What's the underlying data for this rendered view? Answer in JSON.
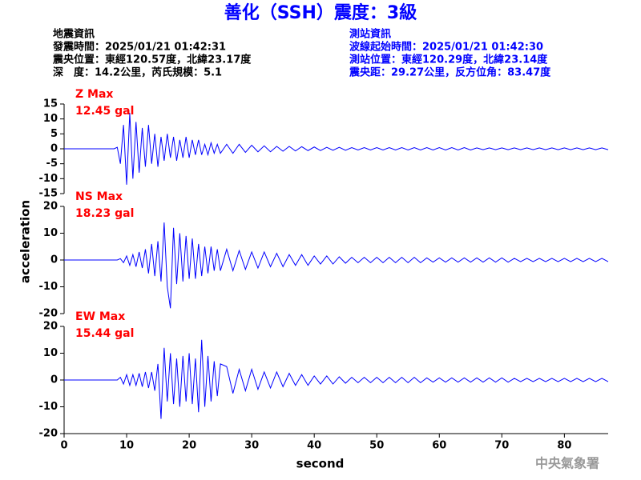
{
  "header": {
    "title": "善化（SSH）震度：3級",
    "left": [
      "地震資訊",
      "發震時間：2025/01/21 01:42:31",
      "震央位置：東經120.57度，北緯23.17度",
      "深　度：14.2公里，芮氏規模：5.1"
    ],
    "right": [
      "測站資訊",
      "波線起始時間：2025/01/21 01:42:30",
      "測站位置：東經120.29度，北緯23.14度",
      "震央距：29.27公里，反方位角：83.47度"
    ]
  },
  "ylabel": "acceleration",
  "footer": "中央氣象署",
  "chart_data": [
    {
      "type": "line",
      "annotation": [
        "Z Max",
        "12.45 gal"
      ],
      "color": "#0000ff",
      "xlim": [
        0,
        87
      ],
      "ylim": [
        -15,
        15
      ],
      "yticks": [
        -15,
        -10,
        -5,
        0,
        5,
        10,
        15
      ],
      "x": [
        0,
        2,
        4,
        6,
        8,
        8.5,
        9,
        9.5,
        10,
        10.5,
        11,
        11.5,
        12,
        12.5,
        13,
        13.5,
        14,
        14.5,
        15,
        15.5,
        16,
        16.5,
        17,
        17.5,
        18,
        18.5,
        19,
        19.5,
        20,
        20.5,
        21,
        21.5,
        22,
        22.5,
        23,
        23.5,
        24,
        24.5,
        25,
        26,
        27,
        28,
        29,
        30,
        31,
        32,
        33,
        34,
        35,
        36,
        37,
        38,
        39,
        40,
        41,
        42,
        43,
        44,
        45,
        46,
        47,
        48,
        49,
        50,
        51,
        52,
        53,
        54,
        55,
        56,
        57,
        58,
        59,
        60,
        61,
        62,
        63,
        64,
        65,
        66,
        67,
        68,
        69,
        70,
        71,
        72,
        73,
        74,
        75,
        76,
        77,
        78,
        79,
        80,
        81,
        82,
        83,
        84,
        85,
        86,
        87
      ],
      "values": [
        0,
        0,
        0,
        0,
        0,
        0.5,
        -5,
        8,
        -12,
        12,
        -10,
        9,
        -8,
        7,
        -6,
        8,
        -5,
        5,
        -6,
        4,
        -4,
        5,
        -3,
        4,
        -4,
        3,
        -3,
        4,
        -3,
        3,
        -2,
        3,
        -2,
        1.5,
        -2,
        2,
        -1.5,
        1.5,
        -1.5,
        1.5,
        -1.5,
        1.5,
        -1.2,
        1.2,
        -1,
        1,
        -1,
        0.8,
        -0.8,
        0.8,
        -0.7,
        0.7,
        -0.6,
        0.6,
        -0.6,
        0.5,
        -0.5,
        0.5,
        -0.5,
        0.4,
        -0.4,
        0.4,
        -0.4,
        0.4,
        -0.4,
        0.4,
        -0.4,
        0.4,
        -0.4,
        0.4,
        -0.4,
        0.4,
        -0.4,
        0.4,
        -0.4,
        0.4,
        -0.4,
        0.4,
        -0.4,
        0.3,
        -0.3,
        0.3,
        -0.3,
        0.3,
        -0.3,
        0.3,
        -0.3,
        0.3,
        -0.3,
        0.3,
        -0.3,
        0.3,
        -0.3,
        0.3,
        -0.3,
        0.3,
        -0.3,
        0.3,
        -0.3,
        0.3,
        -0.3
      ]
    },
    {
      "type": "line",
      "annotation": [
        "NS Max",
        "18.23 gal"
      ],
      "color": "#0000ff",
      "xlim": [
        0,
        87
      ],
      "ylim": [
        -20,
        20
      ],
      "yticks": [
        -20,
        -10,
        0,
        10,
        20
      ],
      "x": [
        0,
        2,
        4,
        6,
        8,
        8.5,
        9,
        9.5,
        10,
        10.5,
        11,
        11.5,
        12,
        12.5,
        13,
        13.5,
        14,
        14.5,
        15,
        15.5,
        16,
        16.5,
        17,
        17.5,
        18,
        18.5,
        19,
        19.5,
        20,
        20.5,
        21,
        21.5,
        22,
        22.5,
        23,
        23.5,
        24,
        24.5,
        25,
        26,
        27,
        28,
        29,
        30,
        31,
        32,
        33,
        34,
        35,
        36,
        37,
        38,
        39,
        40,
        41,
        42,
        43,
        44,
        45,
        46,
        47,
        48,
        49,
        50,
        51,
        52,
        53,
        54,
        55,
        56,
        57,
        58,
        59,
        60,
        61,
        62,
        63,
        64,
        65,
        66,
        67,
        68,
        69,
        70,
        71,
        72,
        73,
        74,
        75,
        76,
        77,
        78,
        79,
        80,
        81,
        82,
        83,
        84,
        85,
        86,
        87
      ],
      "values": [
        0,
        0,
        0,
        0,
        0,
        0,
        0.5,
        -1,
        1.5,
        -2,
        2,
        -2.5,
        3,
        -3,
        4,
        -5,
        6,
        -6,
        7,
        -8,
        14,
        -10,
        -18,
        12,
        -9,
        10,
        -8,
        9,
        -7,
        8,
        -7,
        6,
        -6,
        5,
        -5,
        5,
        -4,
        4,
        -4,
        4,
        -4,
        3.5,
        -3.5,
        3,
        -3,
        3,
        -2.5,
        2.5,
        -2.5,
        2,
        -2,
        2,
        -2,
        1.5,
        -1.5,
        1.5,
        -1.5,
        1.2,
        -1.2,
        1,
        -1,
        1,
        -1,
        1,
        -1,
        1,
        -1,
        1,
        -1,
        1,
        -1,
        0.8,
        -0.8,
        0.8,
        -0.8,
        0.8,
        -0.8,
        0.8,
        -0.8,
        0.8,
        -0.8,
        0.8,
        -0.8,
        0.8,
        -0.8,
        0.6,
        -0.6,
        0.6,
        -0.6,
        0.6,
        -0.6,
        0.6,
        -0.6,
        0.6,
        -0.6,
        0.6,
        -0.6,
        0.6,
        -0.6,
        0.6,
        -0.6
      ]
    },
    {
      "type": "line",
      "annotation": [
        "EW Max",
        "15.44 gal"
      ],
      "color": "#0000ff",
      "xlim": [
        0,
        87
      ],
      "ylim": [
        -20,
        20
      ],
      "yticks": [
        -20,
        -10,
        0,
        10,
        20
      ],
      "xticks": [
        0,
        10,
        20,
        30,
        40,
        50,
        60,
        70,
        80
      ],
      "xlabel": "second",
      "x": [
        0,
        2,
        4,
        6,
        8,
        8.5,
        9,
        9.5,
        10,
        10.5,
        11,
        11.5,
        12,
        12.5,
        13,
        13.5,
        14,
        14.5,
        15,
        15.5,
        16,
        16.5,
        17,
        17.5,
        18,
        18.5,
        19,
        19.5,
        20,
        20.5,
        21,
        21.5,
        22,
        22.5,
        23,
        23.5,
        24,
        24.5,
        25,
        26,
        27,
        28,
        29,
        30,
        31,
        32,
        33,
        34,
        35,
        36,
        37,
        38,
        39,
        40,
        41,
        42,
        43,
        44,
        45,
        46,
        47,
        48,
        49,
        50,
        51,
        52,
        53,
        54,
        55,
        56,
        57,
        58,
        59,
        60,
        61,
        62,
        63,
        64,
        65,
        66,
        67,
        68,
        69,
        70,
        71,
        72,
        73,
        74,
        75,
        76,
        77,
        78,
        79,
        80,
        81,
        82,
        83,
        84,
        85,
        86,
        87
      ],
      "values": [
        0,
        0,
        0,
        0,
        0,
        0,
        1,
        -1.5,
        2,
        -2,
        2,
        -2,
        2.5,
        -2.5,
        3,
        -3,
        3,
        -4,
        6,
        -14.5,
        12,
        -8,
        10,
        -9,
        8,
        -10,
        9,
        -8,
        10,
        -9,
        8,
        -12,
        15,
        -10,
        9,
        -8,
        7,
        -6,
        6,
        5,
        -5,
        4,
        -4,
        4,
        -3.5,
        3,
        -3,
        3,
        -2.5,
        2.5,
        -2,
        2,
        -2,
        1.5,
        -1.5,
        1.5,
        -1.5,
        1.2,
        -1.2,
        1,
        -1,
        1,
        -1,
        1,
        -1,
        1,
        -1,
        1,
        -1,
        1,
        -1,
        0.8,
        -0.8,
        0.8,
        -0.8,
        0.8,
        -0.8,
        0.8,
        -0.8,
        0.8,
        -0.8,
        0.8,
        -0.8,
        0.8,
        -0.8,
        0.6,
        -0.6,
        0.6,
        -0.6,
        0.6,
        -0.6,
        0.6,
        -0.6,
        0.6,
        -0.6,
        0.6,
        -0.6,
        0.6,
        -0.6,
        0.6,
        -0.6
      ]
    }
  ]
}
